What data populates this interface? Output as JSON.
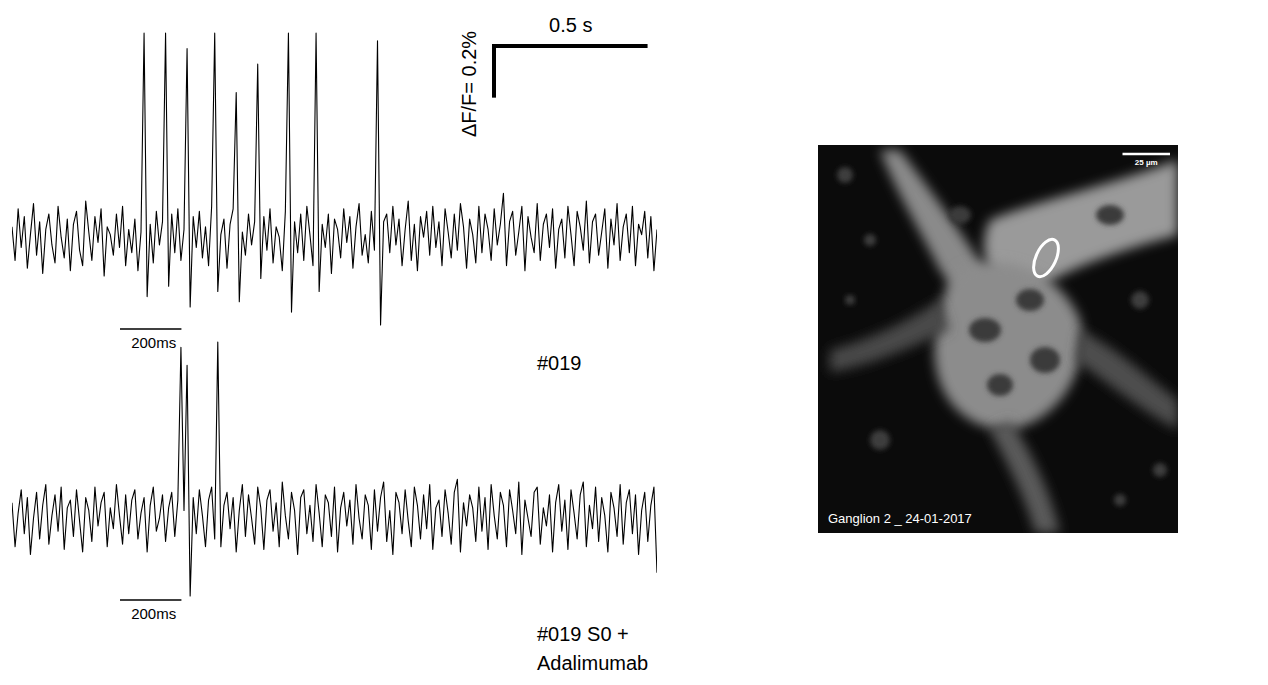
{
  "chart_data": [
    {
      "type": "line",
      "tick_labels": false,
      "xlim": [
        0,
        2100
      ],
      "ylim": [
        -0.33,
        0.82
      ],
      "x": [
        0,
        10,
        20,
        30,
        40,
        50,
        60,
        70,
        80,
        90,
        100,
        110,
        120,
        130,
        140,
        150,
        160,
        170,
        180,
        190,
        200,
        210,
        220,
        230,
        240,
        250,
        260,
        270,
        280,
        290,
        300,
        310,
        320,
        330,
        340,
        350,
        360,
        370,
        380,
        390,
        400,
        410,
        420,
        430,
        440,
        450,
        460,
        470,
        480,
        490,
        500,
        510,
        520,
        530,
        540,
        550,
        560,
        570,
        580,
        590,
        600,
        610,
        620,
        630,
        640,
        650,
        660,
        670,
        680,
        690,
        700,
        710,
        720,
        730,
        740,
        750,
        760,
        770,
        780,
        790,
        800,
        810,
        820,
        830,
        840,
        850,
        860,
        870,
        880,
        890,
        900,
        910,
        920,
        930,
        940,
        950,
        960,
        970,
        980,
        990,
        1000,
        1010,
        1020,
        1030,
        1040,
        1050,
        1060,
        1070,
        1080,
        1090,
        1100,
        1110,
        1120,
        1130,
        1140,
        1150,
        1160,
        1170,
        1180,
        1190,
        1200,
        1210,
        1220,
        1230,
        1240,
        1250,
        1260,
        1270,
        1280,
        1290,
        1300,
        1310,
        1320,
        1330,
        1340,
        1350,
        1360,
        1370,
        1380,
        1390,
        1400,
        1410,
        1420,
        1430,
        1440,
        1450,
        1460,
        1470,
        1480,
        1490,
        1500,
        1510,
        1520,
        1530,
        1540,
        1550,
        1560,
        1570,
        1580,
        1590,
        1600,
        1610,
        1620,
        1630,
        1640,
        1650,
        1660,
        1670,
        1680,
        1690,
        1700,
        1710,
        1720,
        1730,
        1740,
        1750,
        1760,
        1770,
        1780,
        1790,
        1800,
        1810,
        1820,
        1830,
        1840,
        1850,
        1860,
        1870,
        1880,
        1890,
        1900,
        1910,
        1920,
        1930,
        1940,
        1950,
        1960,
        1970,
        1980,
        1990,
        2000,
        2010,
        2020,
        2030,
        2040,
        2050,
        2060,
        2070,
        2080,
        2090,
        2100
      ],
      "series": [
        {
          "name": "#019",
          "color": "#000000",
          "values": [
            0.05,
            -0.08,
            0.12,
            -0.03,
            0.09,
            -0.11,
            0.02,
            0.14,
            -0.06,
            0.07,
            -0.13,
            0.04,
            0.1,
            -0.02,
            -0.09,
            0.13,
            0.01,
            -0.07,
            0.08,
            -0.12,
            0.06,
            0.11,
            -0.04,
            -0.1,
            0.15,
            0.03,
            -0.08,
            0.09,
            -0.01,
            0.12,
            -0.14,
            0.05,
            0.02,
            -0.06,
            0.1,
            -0.03,
            0.13,
            -0.1,
            0.04,
            -0.05,
            0.08,
            -0.12,
            0.03,
            0.8,
            -0.22,
            0.06,
            -0.09,
            0.11,
            -0.02,
            0.07,
            0.8,
            -0.18,
            0.1,
            -0.05,
            0.12,
            -0.08,
            0.04,
            0.74,
            -0.26,
            0.09,
            -0.03,
            0.11,
            -0.07,
            0.05,
            -0.1,
            0.13,
            0.8,
            -0.2,
            0.02,
            0.08,
            -0.11,
            0.06,
            0.12,
            0.57,
            -0.24,
            0.03,
            -0.06,
            0.1,
            -0.02,
            0.07,
            0.68,
            -0.15,
            0.09,
            -0.04,
            0.12,
            -0.09,
            0.05,
            0.01,
            -0.12,
            0.11,
            0.8,
            -0.28,
            0.07,
            -0.05,
            0.1,
            -0.08,
            0.13,
            0.02,
            -0.1,
            0.8,
            -0.2,
            0.06,
            -0.03,
            0.1,
            -0.13,
            0.08,
            0.04,
            -0.07,
            0.12,
            -0.01,
            0.09,
            -0.11,
            0.05,
            0.14,
            -0.06,
            0.02,
            -0.09,
            0.11,
            -0.04,
            0.77,
            -0.33,
            0.07,
            0.1,
            -0.05,
            0.13,
            -0.02,
            0.08,
            -0.1,
            0.04,
            0.15,
            -0.08,
            0.06,
            -0.12,
            0.09,
            0.01,
            0.11,
            -0.06,
            0.13,
            -0.03,
            0.07,
            -0.1,
            0.12,
            0.03,
            -0.07,
            0.1,
            -0.04,
            0.14,
            0.05,
            -0.11,
            0.08,
            0.02,
            -0.09,
            0.13,
            -0.05,
            0.1,
            0.04,
            -0.08,
            0.12,
            -0.02,
            0.06,
            0.18,
            -0.1,
            0.07,
            0.11,
            -0.06,
            0.03,
            0.13,
            -0.12,
            0.09,
            0.01,
            -0.05,
            0.14,
            -0.08,
            0.06,
            0.1,
            -0.03,
            0.12,
            -0.11,
            0.04,
            0.08,
            -0.07,
            0.13,
            0.02,
            -0.1,
            0.11,
            0.05,
            -0.04,
            0.15,
            -0.09,
            0.07,
            0.1,
            -0.06,
            0.03,
            0.12,
            -0.11,
            0.08,
            -0.02,
            0.14,
            -0.08,
            0.05,
            0.1,
            -0.05,
            0.13,
            -0.1,
            0.06,
            0.02,
            0.11,
            -0.07,
            0.09,
            -0.12,
            0.04
          ]
        }
      ],
      "scale_bars": [
        {
          "x": 200,
          "label": "200ms"
        },
        {
          "x": 500,
          "label": "0.5 s"
        },
        {
          "y": 0.2,
          "label": "ΔF/F= 0.2%"
        }
      ]
    },
    {
      "type": "line",
      "tick_labels": false,
      "xlim": [
        0,
        2100
      ],
      "ylim": [
        -0.29,
        0.69
      ],
      "x": [
        0,
        10,
        20,
        30,
        40,
        50,
        60,
        70,
        80,
        90,
        100,
        110,
        120,
        130,
        140,
        150,
        160,
        170,
        180,
        190,
        200,
        210,
        220,
        230,
        240,
        250,
        260,
        270,
        280,
        290,
        300,
        310,
        320,
        330,
        340,
        350,
        360,
        370,
        380,
        390,
        400,
        410,
        420,
        430,
        440,
        450,
        460,
        470,
        480,
        490,
        500,
        510,
        520,
        530,
        540,
        550,
        560,
        570,
        580,
        590,
        600,
        610,
        620,
        630,
        640,
        650,
        660,
        670,
        680,
        690,
        700,
        710,
        720,
        730,
        740,
        750,
        760,
        770,
        780,
        790,
        800,
        810,
        820,
        830,
        840,
        850,
        860,
        870,
        880,
        890,
        900,
        910,
        920,
        930,
        940,
        950,
        960,
        970,
        980,
        990,
        1000,
        1010,
        1020,
        1030,
        1040,
        1050,
        1060,
        1070,
        1080,
        1090,
        1100,
        1110,
        1120,
        1130,
        1140,
        1150,
        1160,
        1170,
        1180,
        1190,
        1200,
        1210,
        1220,
        1230,
        1240,
        1250,
        1260,
        1270,
        1280,
        1290,
        1300,
        1310,
        1320,
        1330,
        1340,
        1350,
        1360,
        1370,
        1380,
        1390,
        1400,
        1410,
        1420,
        1430,
        1440,
        1450,
        1460,
        1470,
        1480,
        1490,
        1500,
        1510,
        1520,
        1530,
        1540,
        1550,
        1560,
        1570,
        1580,
        1590,
        1600,
        1610,
        1620,
        1630,
        1640,
        1650,
        1660,
        1670,
        1680,
        1690,
        1700,
        1710,
        1720,
        1730,
        1740,
        1750,
        1760,
        1770,
        1780,
        1790,
        1800,
        1810,
        1820,
        1830,
        1840,
        1850,
        1860,
        1870,
        1880,
        1890,
        1900,
        1910,
        1920,
        1930,
        1940,
        1950,
        1960,
        1970,
        1980,
        1990,
        2000,
        2010,
        2020,
        2030,
        2040,
        2050,
        2060,
        2070,
        2080,
        2090,
        2100
      ],
      "series": [
        {
          "name": "#019 S0 + Adalimumab",
          "color": "#000000",
          "values": [
            0.07,
            -0.1,
            0.03,
            0.12,
            -0.05,
            0.09,
            -0.13,
            0.01,
            0.11,
            -0.07,
            0.06,
            0.14,
            -0.09,
            0.02,
            0.1,
            -0.04,
            0.13,
            -0.11,
            0.05,
            0.08,
            -0.06,
            0.12,
            0,
            -0.12,
            0.09,
            0.04,
            -0.08,
            0.13,
            -0.02,
            0.07,
            0.11,
            -0.1,
            0.05,
            -0.03,
            0.14,
            0.02,
            -0.09,
            0.1,
            -0.05,
            0.08,
            0.12,
            -0.07,
            0.03,
            0.09,
            -0.12,
            0.06,
            0.13,
            -0.04,
            0.01,
            0.1,
            -0.08,
            0.05,
            0.11,
            -0.06,
            0.08,
            0.67,
            0.04,
            0.6,
            -0.29,
            0.09,
            -0.05,
            0.12,
            0.02,
            -0.1,
            0.08,
            0.13,
            -0.07,
            0.69,
            -0.1,
            0.06,
            0.11,
            -0.03,
            0.09,
            -0.12,
            0.04,
            0.14,
            -0.06,
            0.1,
            0.01,
            -0.09,
            0.13,
            0.05,
            -0.11,
            0.08,
            0.12,
            -0.04,
            0.07,
            -0.1,
            0.15,
            0.02,
            -0.07,
            0.11,
            0.04,
            -0.13,
            0.09,
            0.12,
            -0.05,
            0.06,
            -0.08,
            0.14,
            0.03,
            -0.1,
            0.1,
            0.07,
            -0.06,
            0.13,
            -0.12,
            0.05,
            0.11,
            -0.02,
            0.08,
            -0.09,
            0.14,
            0.01,
            -0.07,
            0.1,
            0.06,
            -0.11,
            0.12,
            -0.04,
            0.09,
            0.15,
            -0.08,
            0.04,
            -0.13,
            0.11,
            0.07,
            -0.05,
            0.12,
            0,
            -0.1,
            0.13,
            0.06,
            -0.07,
            0.1,
            -0.03,
            0.14,
            -0.11,
            0.05,
            0.08,
            -0.06,
            0.12,
            0.03,
            -0.09,
            0.11,
            0.16,
            -0.12,
            0.07,
            -0.02,
            0.1,
            0.05,
            -0.08,
            0.13,
            -0.04,
            0.09,
            -0.11,
            0.14,
            0.02,
            -0.07,
            0.11,
            0.06,
            -0.1,
            0.12,
            0.04,
            -0.05,
            0.15,
            -0.13,
            0.08,
            0.01,
            -0.06,
            0.11,
            0.13,
            -0.09,
            0.05,
            -0.02,
            0.1,
            -0.12,
            0.07,
            0.14,
            -0.04,
            0.08,
            -0.11,
            0.12,
            0.03,
            -0.07,
            0.1,
            0.15,
            -0.1,
            0.06,
            -0.03,
            0.13,
            -0.08,
            0.09,
            0.02,
            -0.12,
            0.11,
            0.05,
            -0.06,
            0.14,
            -0.09,
            0.07,
            0.12,
            -0.05,
            0.1,
            -0.13,
            0.04,
            0.11,
            -0.08,
            0.06,
            0.13,
            -0.2
          ]
        }
      ],
      "scale_bars": [
        {
          "x": 200,
          "label": "200ms"
        }
      ]
    }
  ],
  "image": {
    "caption": "Ganglion 2 _ 24-01-2017",
    "scale_bar": {
      "length": 25,
      "label": "25 µm"
    }
  }
}
